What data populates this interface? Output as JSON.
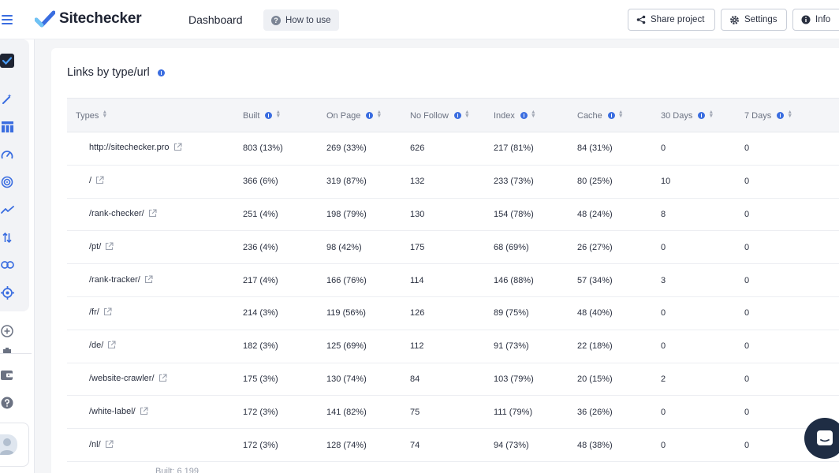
{
  "header": {
    "brand": "Sitechecker",
    "breadcrumb": "Dashboard",
    "how_to_use": "How to use",
    "share_project": "Share project",
    "settings": "Settings",
    "info": "Info"
  },
  "card": {
    "title": "Links by type/url",
    "footer_note": "Built: 6 199"
  },
  "table": {
    "columns": [
      "Types",
      "Built",
      "On Page",
      "No Follow",
      "Index",
      "Cache",
      "30 Days",
      "7 Days"
    ],
    "rows": [
      [
        "http://sitechecker.pro",
        "803 (13%)",
        "269 (33%)",
        "626",
        "217 (81%)",
        "84 (31%)",
        "0",
        "0"
      ],
      [
        "/",
        "366 (6%)",
        "319 (87%)",
        "132",
        "233 (73%)",
        "80 (25%)",
        "10",
        "0"
      ],
      [
        "/rank-checker/",
        "251 (4%)",
        "198 (79%)",
        "130",
        "154 (78%)",
        "48 (24%)",
        "8",
        "0"
      ],
      [
        "/pt/",
        "236 (4%)",
        "98 (42%)",
        "175",
        "68 (69%)",
        "26 (27%)",
        "0",
        "0"
      ],
      [
        "/rank-tracker/",
        "217 (4%)",
        "166 (76%)",
        "114",
        "146 (88%)",
        "57 (34%)",
        "3",
        "0"
      ],
      [
        "/fr/",
        "214 (3%)",
        "119 (56%)",
        "126",
        "89 (75%)",
        "48 (40%)",
        "0",
        "0"
      ],
      [
        "/de/",
        "182 (3%)",
        "125 (69%)",
        "112",
        "91 (73%)",
        "22 (18%)",
        "0",
        "0"
      ],
      [
        "/website-crawler/",
        "175 (3%)",
        "130 (74%)",
        "84",
        "103 (79%)",
        "20 (15%)",
        "2",
        "0"
      ],
      [
        "/white-label/",
        "172 (3%)",
        "141 (82%)",
        "75",
        "111 (79%)",
        "36 (26%)",
        "0",
        "0"
      ],
      [
        "/nl/",
        "172 (3%)",
        "128 (74%)",
        "74",
        "94 (73%)",
        "48 (38%)",
        "0",
        "0"
      ]
    ]
  },
  "sidebar": {
    "icons": [
      "dashboard-check-icon",
      "magic-wand-icon",
      "table-icon",
      "speedometer-icon",
      "target-icon",
      "trend-icon",
      "sort-arrows-icon",
      "link-icon",
      "crosshair-icon",
      "add-circle-icon",
      "wallet-icon",
      "help-icon",
      "user-avatar"
    ]
  },
  "colors": {
    "accent": "#3a6de0",
    "dark": "#1f2433",
    "chat": "#1f2d44"
  }
}
